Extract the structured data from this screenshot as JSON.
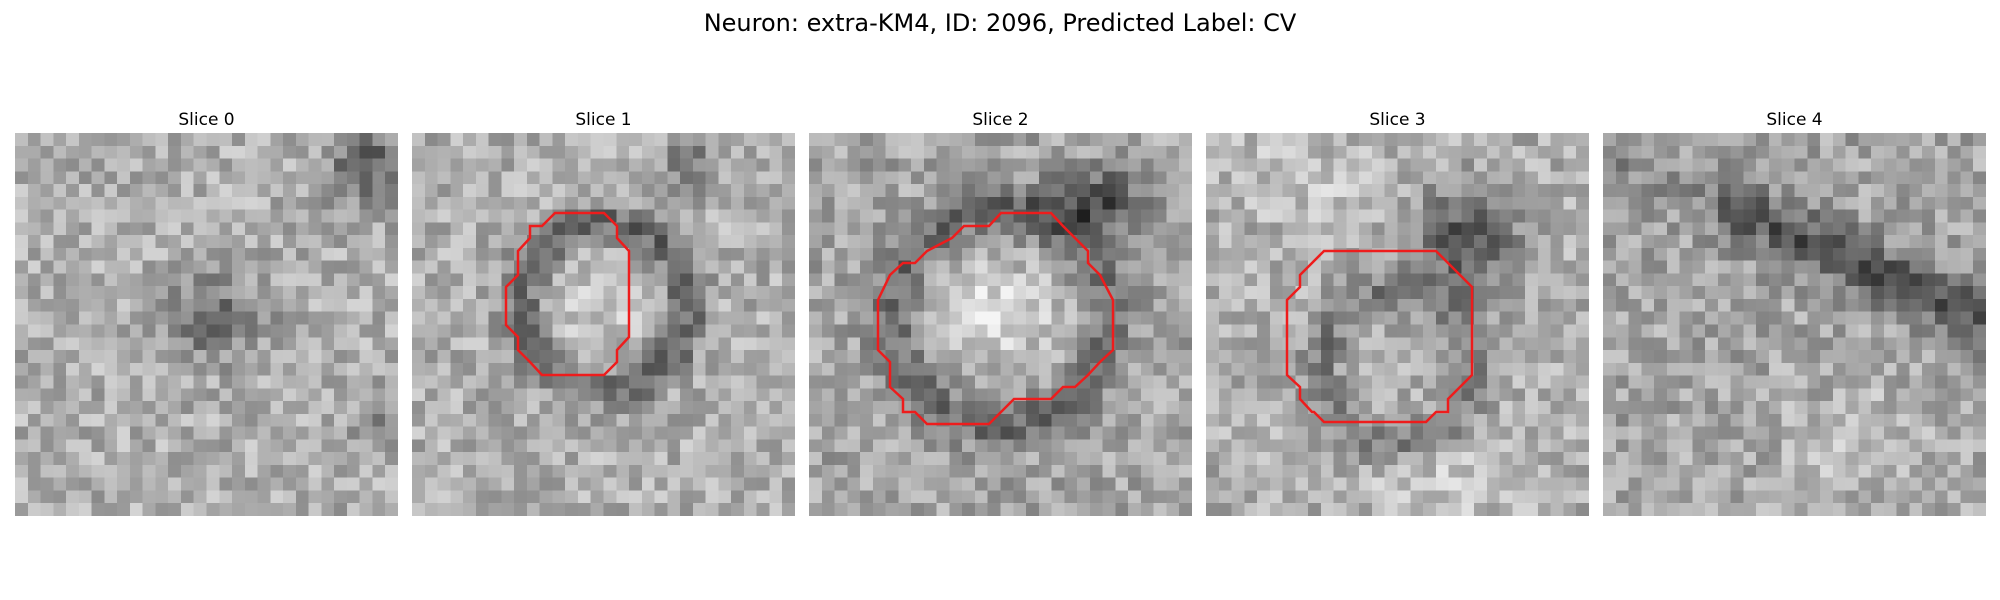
{
  "title": "Neuron: extra-KM4, ID: 2096, Predicted Label: CV",
  "outline_color": "#ee1c1c",
  "slices": [
    {
      "label": "Slice 0",
      "has_outline": false
    },
    {
      "label": "Slice 1",
      "has_outline": true
    },
    {
      "label": "Slice 2",
      "has_outline": true
    },
    {
      "label": "Slice 3",
      "has_outline": true
    },
    {
      "label": "Slice 4",
      "has_outline": false
    }
  ]
}
